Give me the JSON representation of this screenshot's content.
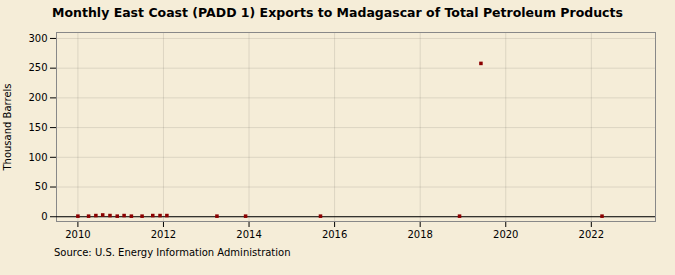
{
  "chart_data": {
    "type": "scatter",
    "title": "Monthly East Coast (PADD 1) Exports to Madagascar of Total Petroleum Products",
    "ylabel": "Thousand Barrels",
    "source": "Source: U.S. Energy Information Administration",
    "x": [
      2010.0,
      2010.25,
      2010.42,
      2010.58,
      2010.75,
      2010.92,
      2011.08,
      2011.25,
      2011.5,
      2011.75,
      2011.92,
      2012.08,
      2013.25,
      2013.92,
      2015.67,
      2018.92,
      2019.42,
      2022.25
    ],
    "values": [
      1,
      1,
      2,
      3,
      2,
      1,
      2,
      1,
      1,
      2,
      2,
      2,
      1,
      1,
      1,
      1,
      258,
      1
    ],
    "color": "#8b0000",
    "marker": "square",
    "xlim": [
      2009.5,
      2023.5
    ],
    "ylim": [
      -8,
      310
    ],
    "xticks": [
      2010,
      2012,
      2014,
      2016,
      2018,
      2020,
      2022
    ],
    "yticks": [
      0,
      50,
      100,
      150,
      200,
      250,
      300
    ],
    "grid": true
  }
}
